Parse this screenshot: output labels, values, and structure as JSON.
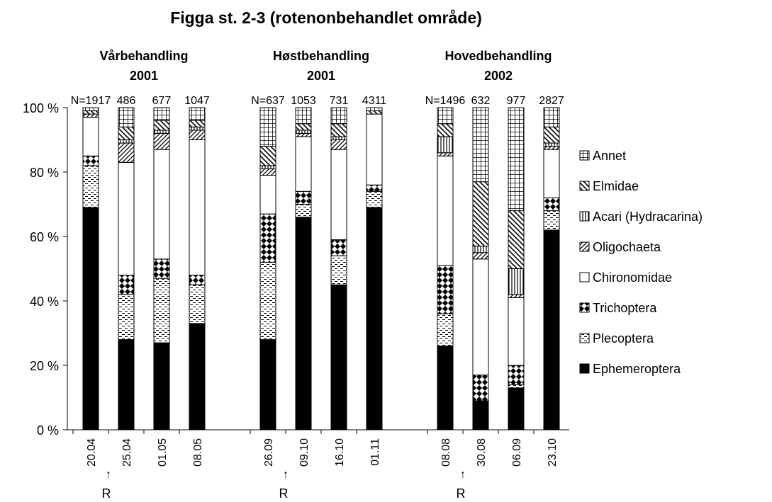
{
  "chart_data": {
    "type": "stacked-bar",
    "title": "Figga st. 2-3 (rotenonbehandlet område)",
    "groups": [
      [
        "Vårbehandling",
        "2001"
      ],
      [
        "Høstbehandling",
        "2001"
      ],
      [
        "Hovedbehandling",
        "2002"
      ]
    ],
    "categories": [
      "20.04",
      "25.04",
      "01.05",
      "08.05",
      null,
      "26.09",
      "09.10",
      "16.10",
      "01.11",
      null,
      "08.08",
      "30.08",
      "06.09",
      "23.10"
    ],
    "n_labels": [
      "N=1917",
      "486",
      "677",
      "1047",
      null,
      "N=637",
      "1053",
      "731",
      "4311",
      null,
      "N=1496",
      "632",
      "977",
      "2827"
    ],
    "arrow": "↑",
    "treatment_marks": [
      "R",
      "R",
      "R"
    ],
    "ylim": [
      0,
      100
    ],
    "yticks": [
      {
        "value": 0,
        "label": "0 %"
      },
      {
        "value": 20,
        "label": "20 %"
      },
      {
        "value": 40,
        "label": "40 %"
      },
      {
        "value": 60,
        "label": "60 %"
      },
      {
        "value": 80,
        "label": "80 %"
      },
      {
        "value": 100,
        "label": "100 %"
      }
    ],
    "series": [
      {
        "name": "Ephemeroptera",
        "color": "#000000",
        "pattern": "solid",
        "values": [
          69,
          28,
          27,
          33,
          null,
          28,
          66,
          45,
          69,
          null,
          26,
          9,
          13,
          62
        ]
      },
      {
        "name": "Plecoptera",
        "color": "#000000",
        "pattern": "dashes",
        "values": [
          13,
          14,
          20,
          12,
          null,
          24,
          4,
          9,
          5,
          null,
          10,
          0,
          1,
          6
        ]
      },
      {
        "name": "Trichoptera",
        "color": "#000000",
        "pattern": "diamonds",
        "values": [
          3,
          6,
          6,
          3,
          null,
          15,
          4,
          5,
          2,
          null,
          15,
          8,
          6,
          4
        ]
      },
      {
        "name": "Chironomidae",
        "color": "#ffffff",
        "pattern": "solid",
        "values": [
          12,
          35,
          34,
          42,
          null,
          12,
          17,
          28,
          22,
          null,
          34,
          36,
          21,
          15
        ]
      },
      {
        "name": "Oligochaeta",
        "color": "#000000",
        "pattern": "hatch",
        "values": [
          1,
          6,
          5,
          3,
          null,
          2,
          1,
          3,
          0,
          null,
          1,
          2,
          1,
          1
        ]
      },
      {
        "name": "Acari (Hydracarina)",
        "color": "#000000",
        "pattern": "vlines",
        "values": [
          0,
          1,
          1,
          1,
          null,
          1,
          1,
          1,
          0,
          null,
          5,
          2,
          8,
          1
        ]
      },
      {
        "name": "Elmidae",
        "color": "#000000",
        "pattern": "backhatch",
        "values": [
          1,
          4,
          3,
          2,
          null,
          6,
          2,
          4,
          1,
          null,
          4,
          20,
          18,
          5
        ]
      },
      {
        "name": "Annet",
        "color": "#000000",
        "pattern": "grid",
        "values": [
          1,
          6,
          4,
          4,
          null,
          12,
          5,
          5,
          1,
          null,
          5,
          23,
          32,
          6
        ]
      }
    ]
  }
}
